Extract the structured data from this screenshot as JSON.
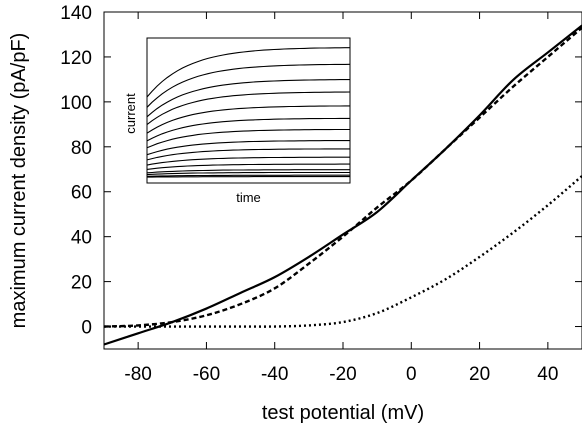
{
  "chart_data": {
    "type": "line",
    "xlabel": "test potential (mV)",
    "ylabel": "maximum current density (pA/pF)",
    "xlim": [
      -90,
      50
    ],
    "ylim": [
      -10,
      140
    ],
    "xticks": [
      -80,
      -60,
      -40,
      -20,
      0,
      20,
      40
    ],
    "yticks": [
      0,
      20,
      40,
      60,
      80,
      100,
      120,
      140
    ],
    "grid": false,
    "legend": "none",
    "series": [
      {
        "style": "solid",
        "x": [
          -90,
          -80,
          -70,
          -60,
          -50,
          -40,
          -30,
          -20,
          -10,
          0,
          10,
          20,
          30,
          40,
          50
        ],
        "y": [
          -8,
          -3,
          2,
          8,
          15,
          22,
          31,
          41,
          51,
          65,
          79,
          94,
          110,
          122,
          134
        ]
      },
      {
        "style": "dashed",
        "x": [
          -90,
          -80,
          -70,
          -60,
          -50,
          -40,
          -30,
          -20,
          -10,
          0,
          10,
          20,
          30,
          40,
          50
        ],
        "y": [
          0,
          0.5,
          2,
          5,
          10,
          17,
          28,
          40,
          53,
          65,
          79,
          93,
          107,
          120,
          133
        ]
      },
      {
        "style": "dotted",
        "x": [
          -90,
          -80,
          -70,
          -60,
          -50,
          -40,
          -30,
          -20,
          -10,
          0,
          10,
          20,
          30,
          40,
          50
        ],
        "y": [
          0,
          0,
          0,
          0,
          0,
          0,
          0.5,
          2,
          6,
          13,
          21,
          31,
          42,
          54,
          67
        ]
      }
    ],
    "inset": {
      "xlabel": "time",
      "ylabel": "current",
      "traces": [
        0.94,
        0.82,
        0.71,
        0.62,
        0.52,
        0.43,
        0.35,
        0.27,
        0.21,
        0.15,
        0.1,
        0.06,
        0.04,
        0.02,
        0.01
      ]
    }
  }
}
